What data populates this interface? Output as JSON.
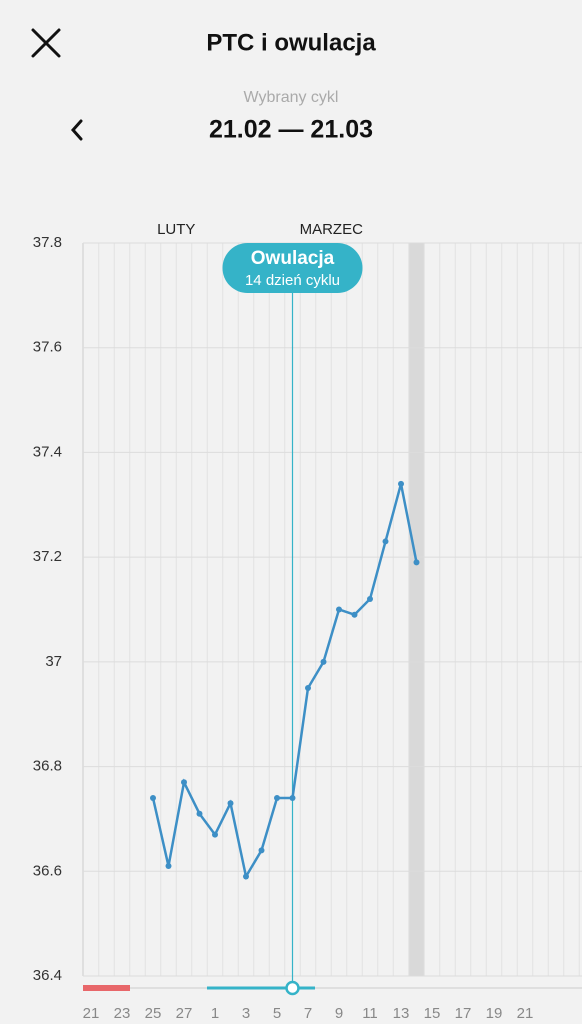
{
  "header": {
    "title": "PTC i owulacja",
    "subtitle": "Wybrany cykl",
    "cycle": "21.02 — 21.03"
  },
  "chart_data": {
    "type": "line",
    "categories": [
      "21",
      null,
      "23",
      null,
      "25",
      null,
      "27",
      null,
      "1",
      null,
      "3",
      null,
      "5",
      null,
      "7",
      null,
      "9",
      null,
      "11",
      null,
      "13",
      null,
      "15",
      null,
      "17",
      null,
      "19",
      null,
      "21"
    ],
    "series": [
      {
        "name": "PTC",
        "color": "#3d8fc6",
        "values": [
          null,
          null,
          null,
          null,
          36.74,
          36.61,
          36.77,
          36.71,
          36.67,
          36.73,
          36.59,
          36.64,
          36.74,
          36.74,
          36.95,
          37.0,
          37.1,
          37.09,
          37.12,
          37.23,
          37.34,
          37.19,
          null,
          null,
          null,
          null,
          null,
          null,
          null
        ]
      }
    ],
    "ylim": [
      36.4,
      37.8
    ],
    "yticks": [
      36.4,
      36.6,
      36.8,
      37,
      37.2,
      37.4,
      37.6,
      37.8
    ],
    "grid": true,
    "months": [
      {
        "name": "LUTY",
        "index": 5.5
      },
      {
        "name": "MARZEC",
        "index": 15.5
      }
    ],
    "ovulation": {
      "index": 13,
      "title": "Owulacja",
      "label": "14 dzień cyklu"
    },
    "today_index": 21,
    "period": [
      0,
      2
    ]
  }
}
